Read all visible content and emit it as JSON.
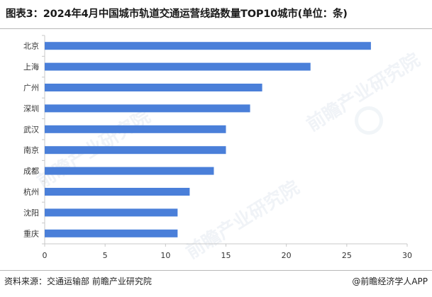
{
  "title": "图表3：2024年4月中国城市轨道交通运营线路数量TOP10城市(单位：条)",
  "source": "资料来源：交通运输部 前瞻产业研究院",
  "brand": "@前瞻经济学人APP",
  "watermark_text": "前瞻产业研究院",
  "colors": {
    "bar": "#4a7fd9",
    "axis": "#c8c8c8",
    "text": "#333333"
  },
  "chart_data": {
    "type": "bar",
    "orientation": "horizontal",
    "categories": [
      "北京",
      "上海",
      "广州",
      "深圳",
      "武汉",
      "南京",
      "成都",
      "杭州",
      "沈阳",
      "重庆"
    ],
    "values": [
      27,
      22,
      18,
      17,
      15,
      15,
      14,
      12,
      11,
      11
    ],
    "xlim": [
      0,
      30
    ],
    "xticks": [
      0,
      5,
      10,
      15,
      20,
      25,
      30
    ],
    "title": "2024年4月中国城市轨道交通运营线路数量TOP10城市(单位：条)",
    "xlabel": "",
    "ylabel": "",
    "grid": false,
    "legend": "none"
  }
}
